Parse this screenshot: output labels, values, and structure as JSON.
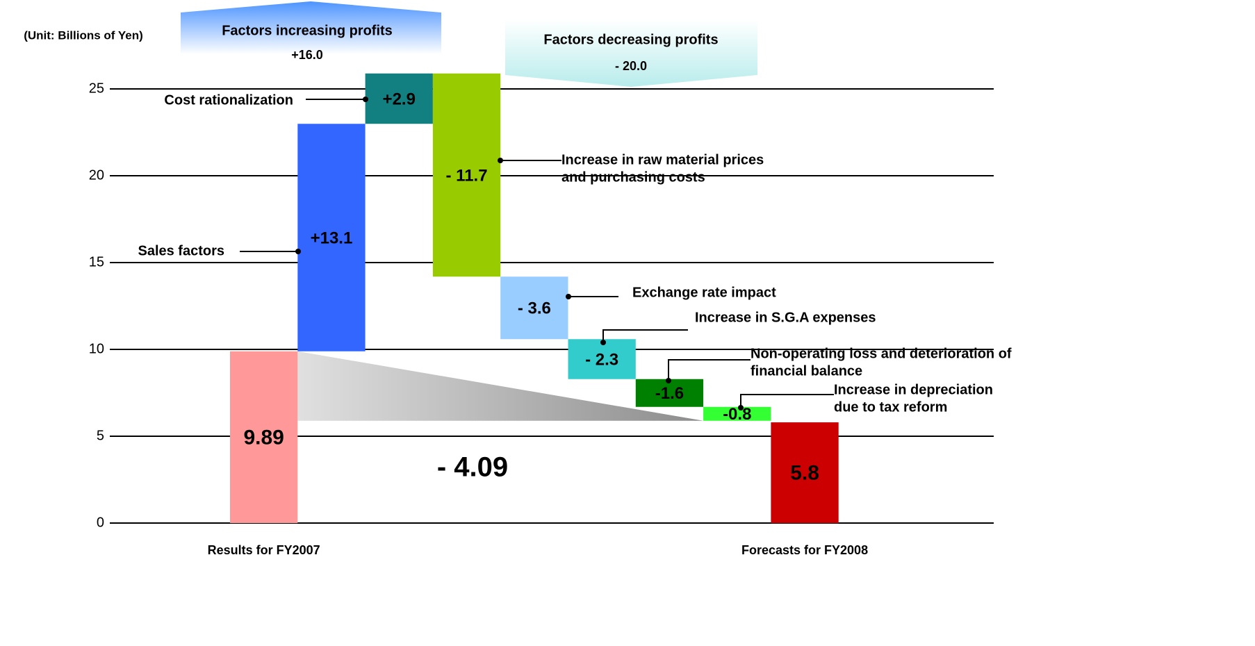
{
  "chart_data": {
    "type": "waterfall",
    "unit_label": "(Unit: Billions of Yen)",
    "categories": [
      "Results for FY2007",
      null,
      null,
      null,
      null,
      null,
      null,
      null,
      "Forecasts for FY2008"
    ],
    "values": [
      9.89,
      13.1,
      2.9,
      -11.7,
      -3.6,
      -2.3,
      -1.6,
      -0.8,
      5.8
    ],
    "value_labels": [
      "9.89",
      "+13.1",
      "+2.9",
      "- 11.7",
      "- 3.6",
      "- 2.3",
      "-1.6",
      "-0.8",
      "5.8"
    ],
    "colors": [
      "#ff9999",
      "#3366ff",
      "#128080",
      "#99cc00",
      "#99ccff",
      "#33cccc",
      "#008000",
      "#33ff33",
      "#cc0000"
    ],
    "factor_labels": [
      null,
      [
        "Sales factors"
      ],
      [
        "Cost rationalization"
      ],
      [
        "Increase in raw material prices",
        "and purchasing costs"
      ],
      [
        "Exchange rate impact"
      ],
      [
        "Increase in S.G.A expenses"
      ],
      [
        "Non-operating loss and deterioration of",
        "financial balance"
      ],
      [
        "Increase in depreciation",
        "due to tax reform"
      ],
      null
    ],
    "increase_title": "Factors increasing profits",
    "increase_total": "+16.0",
    "decrease_title": "Factors decreasing profits",
    "decrease_total": "- 20.0",
    "difference_label": "- 4.09",
    "ylim": [
      0,
      25
    ],
    "yticks": [
      0,
      5,
      10,
      15,
      20,
      25
    ],
    "grid": true
  }
}
